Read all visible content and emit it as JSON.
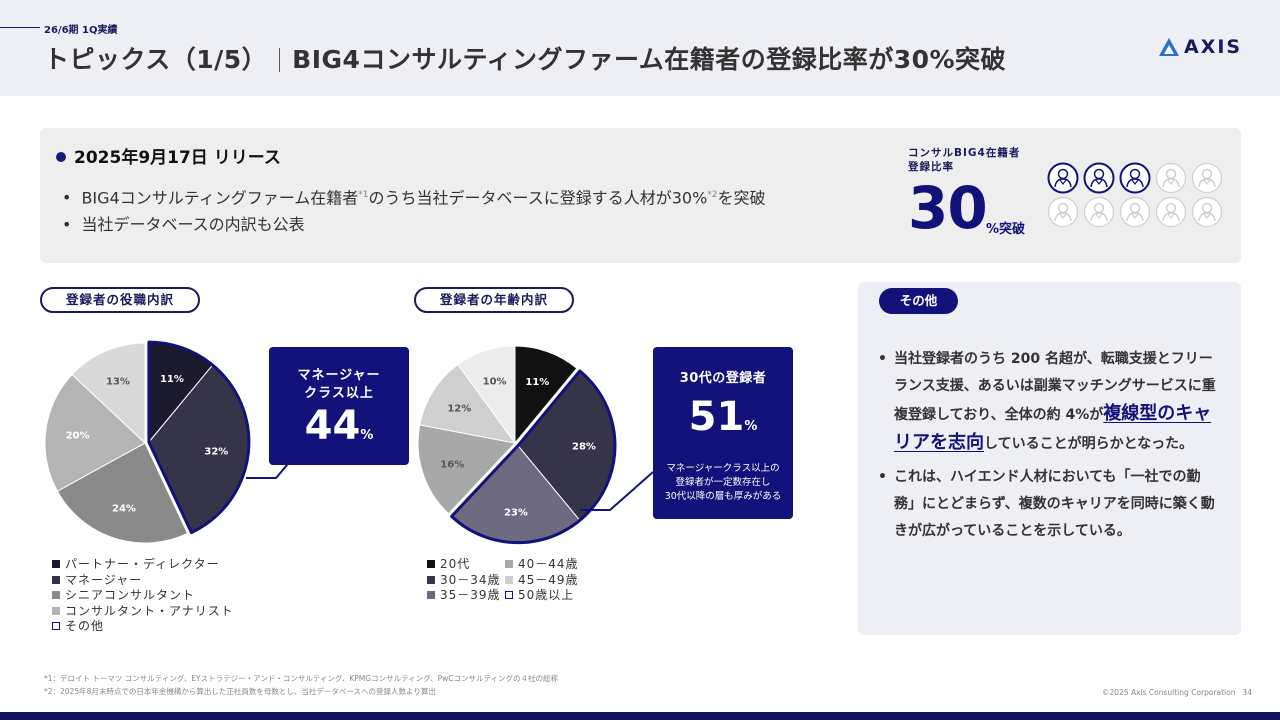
{
  "header": {
    "period": "26/6期 1Q実績",
    "title_main": "トピックス（1/5）",
    "title_sub": "BIG4コンサルティングファーム在籍者の登録比率が30%突破",
    "logo_text": "AXIS"
  },
  "release": {
    "heading": "2025年9月17日 リリース",
    "bullet1_a": "BIG4コンサルティングファーム在籍者",
    "bullet1_sup1": "*1",
    "bullet1_b": "のうち当社データベースに登録する人材が30%",
    "bullet1_sup2": "*2",
    "bullet1_c": "を突破",
    "bullet2": "当社データベースの内訳も公表",
    "big4_label_line1": "コンサルBIG4在籍者",
    "big4_label_line2": "登録比率",
    "big4_value": "30",
    "big4_suffix": "%突破",
    "people_filled": 3,
    "people_total": 10
  },
  "chart_role": {
    "pill": "登録者の役職内訳",
    "callout_line1": "マネージャー",
    "callout_line2": "クラス以上",
    "callout_value": "44",
    "callout_unit": "%",
    "legend": [
      "パートナー・ディレクター",
      "マネージャー",
      "シニアコンサルタント",
      "コンサルタント・アナリスト",
      "その他"
    ]
  },
  "chart_age": {
    "pill": "登録者の年齢内訳",
    "callout_title": "30代の登録者",
    "callout_value": "51",
    "callout_unit": "%",
    "callout_note1": "マネージャークラス以上の",
    "callout_note2": "登録者が一定数存在し",
    "callout_note3": "30代以降の層も厚みがある",
    "legend": [
      "20代",
      "40－44歳",
      "30－34歳",
      "45－49歳",
      "35－39歳",
      "50歳以上"
    ]
  },
  "chart_data": [
    {
      "type": "pie",
      "title": "登録者の役職内訳",
      "categories": [
        "パートナー・ディレクター",
        "マネージャー",
        "シニアコンサルタント",
        "コンサルタント・アナリスト",
        "その他"
      ],
      "values": [
        11,
        32,
        24,
        20,
        13
      ],
      "labels": [
        "11%",
        "32%",
        "24%",
        "20%",
        "13%"
      ],
      "colors": [
        "#1c1b2e",
        "#353448",
        "#8a8a8a",
        "#b4b4b4",
        "#d9d9d9"
      ],
      "highlighted": [
        "パートナー・ディレクター",
        "マネージャー"
      ]
    },
    {
      "type": "pie",
      "title": "登録者の年齢内訳",
      "categories": [
        "20代",
        "30－34歳",
        "35－39歳",
        "40－44歳",
        "45－49歳",
        "50歳以上"
      ],
      "values": [
        11,
        28,
        23,
        16,
        12,
        10
      ],
      "labels": [
        "11%",
        "28%",
        "23%",
        "16%",
        "12%",
        "10%"
      ],
      "colors": [
        "#111111",
        "#353448",
        "#6e6b80",
        "#a8a8a8",
        "#cfcfcf",
        "#ececec"
      ],
      "highlighted": [
        "30－34歳",
        "35－39歳"
      ]
    }
  ],
  "other": {
    "pill": "その他",
    "b1_a": "当社登録者のうち 200 名超が、転職支援とフリーランス支援、あるいは副業マッチングサービスに重複登録しており、全体の約 4%が",
    "b1_hl": "複線型のキャリアを志向",
    "b1_b": "していることが明らかとなった。",
    "b2": "これは、ハイエンド人材においても「一社での勤務」にとどまらず、複数のキャリアを同時に築く動きが広がっていることを示している。"
  },
  "footer": {
    "note1": "*1：デロイト トーマツ コンサルティング、EYストラテジー・アンド・コンサルティング、KPMGコンサルティング、PwCコンサルティングの４社の総称",
    "note2": "*2：2025年8月末時点での日本年金機構から算出した正社員数を母数とし、当社データベースへの登録人数より算出",
    "copyright": "©2025 Axis Consulting Corporation",
    "page": "34"
  }
}
